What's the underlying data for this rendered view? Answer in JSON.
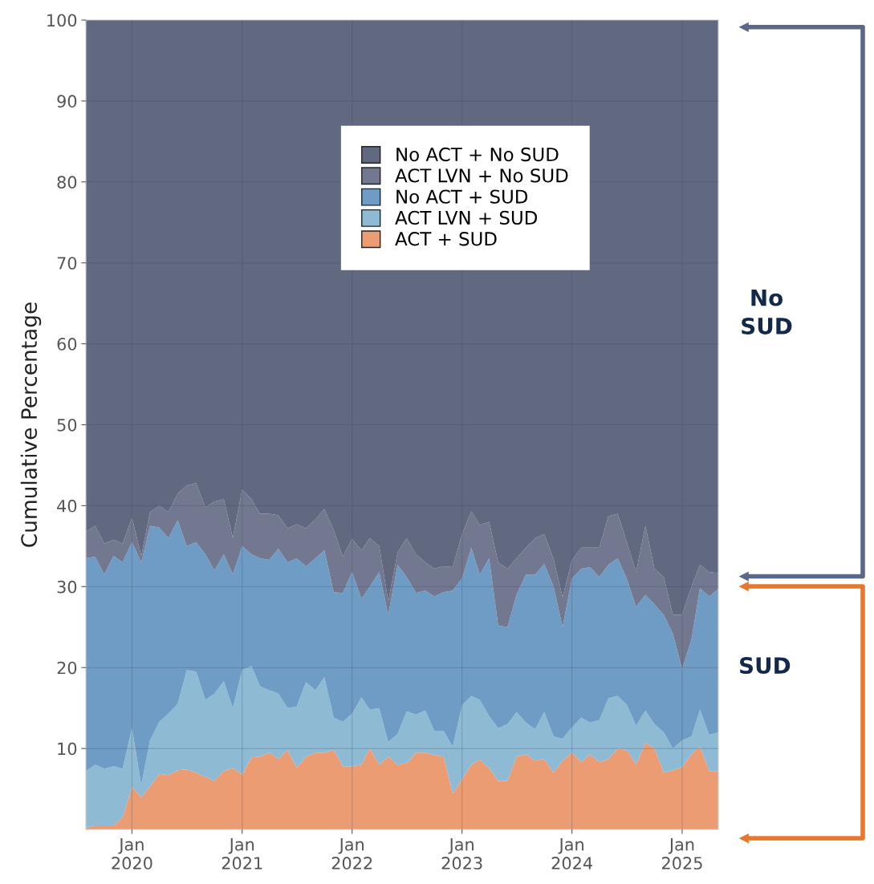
{
  "chart_data": {
    "type": "area",
    "stacked": true,
    "ylabel": "Cumulative Percentage",
    "x": [
      "2019-08",
      "2019-09",
      "2019-10",
      "2019-11",
      "2019-12",
      "2020-01",
      "2020-02",
      "2020-03",
      "2020-04",
      "2020-05",
      "2020-06",
      "2020-07",
      "2020-08",
      "2020-09",
      "2020-10",
      "2020-11",
      "2020-12",
      "2021-01",
      "2021-02",
      "2021-03",
      "2021-04",
      "2021-05",
      "2021-06",
      "2021-07",
      "2021-08",
      "2021-09",
      "2021-10",
      "2021-11",
      "2021-12",
      "2022-01",
      "2022-02",
      "2022-03",
      "2022-04",
      "2022-05",
      "2022-06",
      "2022-07",
      "2022-08",
      "2022-09",
      "2022-10",
      "2022-11",
      "2022-12",
      "2023-01",
      "2023-02",
      "2023-03",
      "2023-04",
      "2023-05",
      "2023-06",
      "2023-07",
      "2023-08",
      "2023-09",
      "2023-10",
      "2023-11",
      "2023-12",
      "2024-01",
      "2024-02",
      "2024-03",
      "2024-04",
      "2024-05",
      "2024-06",
      "2024-07",
      "2024-08",
      "2024-09",
      "2024-10",
      "2024-11",
      "2024-12",
      "2025-01",
      "2025-02",
      "2025-03",
      "2025-04",
      "2025-05"
    ],
    "series": [
      {
        "name": "ACT + SUD",
        "color": "#eb9c73",
        "values": [
          0.2,
          0.5,
          0.5,
          0.5,
          1.5,
          5.2,
          4.0,
          5.3,
          6.9,
          6.7,
          7.3,
          7.4,
          7.0,
          6.5,
          6.0,
          7.2,
          7.6,
          6.8,
          8.9,
          9.0,
          9.5,
          8.7,
          9.8,
          7.6,
          9.0,
          9.5,
          9.5,
          9.8,
          7.8,
          7.8,
          8.0,
          10.0,
          8.0,
          9.0,
          8.0,
          8.2,
          9.5,
          9.5,
          9.2,
          9.0,
          4.4,
          6.2,
          8.0,
          8.6,
          7.6,
          6.0,
          6.0,
          9.0,
          9.3,
          8.5,
          8.7,
          7.0,
          8.5,
          9.5,
          8.3,
          9.3,
          8.3,
          8.7,
          10.0,
          9.8,
          8.0,
          10.7,
          10.0,
          7.0,
          7.3,
          7.7,
          9.3,
          10.2,
          7.2,
          7.2
        ]
      },
      {
        "name": "ACT LVN + SUD",
        "color": "#8ebad4",
        "values": [
          7.0,
          7.5,
          7.0,
          7.3,
          6.0,
          7.3,
          1.5,
          5.7,
          6.4,
          7.6,
          8.2,
          12.3,
          12.5,
          9.5,
          10.8,
          11.1,
          7.4,
          12.9,
          11.3,
          8.7,
          7.7,
          8.1,
          5.2,
          7.6,
          9.2,
          7.7,
          9.3,
          4.0,
          5.5,
          6.5,
          8.3,
          4.8,
          7.0,
          1.8,
          3.8,
          6.4,
          4.7,
          5.2,
          3.0,
          3.2,
          5.8,
          9.1,
          8.5,
          7.4,
          6.4,
          6.5,
          7.0,
          5.5,
          3.9,
          3.9,
          5.8,
          4.5,
          2.7,
          3.1,
          5.5,
          3.9,
          5.2,
          7.5,
          6.5,
          5.6,
          4.8,
          4.0,
          3.0,
          5.0,
          2.7,
          3.3,
          2.2,
          4.6,
          4.5,
          4.8
        ]
      },
      {
        "name": "No ACT + SUD",
        "color": "#6f9cc4",
        "values": [
          26.3,
          25.7,
          24.0,
          26.0,
          25.5,
          23.0,
          27.5,
          26.5,
          24.0,
          21.7,
          22.7,
          15.3,
          16.0,
          18.0,
          15.2,
          15.7,
          16.5,
          15.3,
          13.8,
          15.8,
          16.1,
          17.9,
          18.0,
          18.3,
          14.3,
          16.3,
          15.7,
          15.5,
          15.9,
          17.5,
          12.2,
          15.2,
          16.8,
          15.7,
          20.9,
          16.6,
          15.0,
          14.8,
          16.6,
          17.1,
          19.3,
          15.7,
          18.3,
          15.5,
          19.5,
          12.7,
          12.0,
          14.5,
          18.3,
          19.1,
          18.3,
          18.5,
          13.8,
          18.4,
          18.4,
          19.2,
          17.7,
          16.5,
          17.0,
          15.6,
          14.7,
          14.3,
          14.8,
          14.5,
          14.2,
          8.8,
          12.0,
          15.0,
          17.1,
          17.7
        ]
      },
      {
        "name": "ACT LVN + No SUD",
        "color": "#72788f",
        "values": [
          3.3,
          3.8,
          3.8,
          2.0,
          2.3,
          3.0,
          0.8,
          1.7,
          2.7,
          3.2,
          3.3,
          7.5,
          7.3,
          5.8,
          8.5,
          6.8,
          4.5,
          7.0,
          6.8,
          5.5,
          5.7,
          4.1,
          4.2,
          4.2,
          4.7,
          4.8,
          5.1,
          7.7,
          4.5,
          4.1,
          6.0,
          6.0,
          3.2,
          1.7,
          1.5,
          4.8,
          4.8,
          3.5,
          3.4,
          3.2,
          2.9,
          5.5,
          4.5,
          6.1,
          4.5,
          7.8,
          7.2,
          4.5,
          3.3,
          4.5,
          3.7,
          3.4,
          3.7,
          2.3,
          2.6,
          2.4,
          3.6,
          6.0,
          5.5,
          4.5,
          4.3,
          8.5,
          4.4,
          4.7,
          2.3,
          6.7,
          6.5,
          2.9,
          3.0,
          2.0
        ]
      },
      {
        "name": "No ACT + No SUD",
        "color": "#616981",
        "values": [
          63.2,
          62.5,
          64.7,
          64.2,
          64.7,
          61.5,
          66.2,
          60.8,
          60.0,
          60.8,
          58.5,
          57.5,
          57.2,
          60.2,
          59.5,
          59.2,
          64.0,
          58.0,
          59.2,
          61.0,
          61.0,
          61.2,
          62.8,
          62.3,
          62.8,
          61.7,
          60.4,
          63.0,
          66.3,
          64.1,
          65.5,
          64.0,
          65.0,
          71.8,
          65.8,
          64.0,
          66.0,
          67.0,
          67.8,
          67.5,
          67.6,
          63.5,
          60.7,
          62.4,
          62.0,
          67.0,
          67.8,
          66.5,
          65.2,
          64.0,
          63.5,
          66.6,
          71.3,
          66.7,
          65.2,
          65.2,
          65.2,
          61.3,
          61.0,
          64.5,
          68.2,
          62.5,
          67.8,
          68.8,
          73.5,
          73.5,
          70.0,
          67.3,
          68.2,
          68.3
        ]
      }
    ],
    "xlim": [
      "2019-08",
      "2025-05"
    ],
    "xticks": [
      {
        "value": "2020-01",
        "label": "Jan\n2020"
      },
      {
        "value": "2021-01",
        "label": "Jan\n2021"
      },
      {
        "value": "2022-01",
        "label": "Jan\n2022"
      },
      {
        "value": "2023-01",
        "label": "Jan\n2023"
      },
      {
        "value": "2024-01",
        "label": "Jan\n2024"
      },
      {
        "value": "2025-01",
        "label": "Jan\n2025"
      }
    ],
    "ylim": [
      0,
      100
    ],
    "yticks": [
      10,
      20,
      30,
      40,
      50,
      60,
      70,
      80,
      90,
      100
    ],
    "grid": true,
    "legend": "top",
    "annotations": [
      "No\nSUD",
      "SUD"
    ]
  }
}
